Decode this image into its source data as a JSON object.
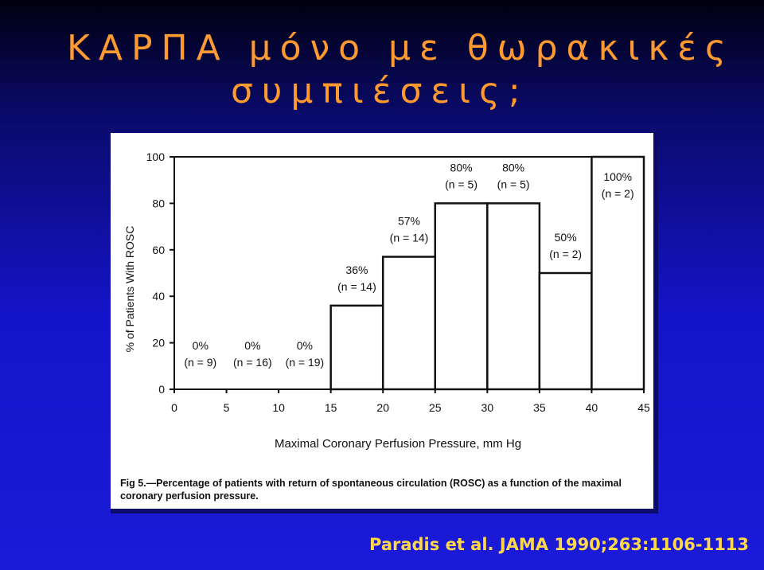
{
  "slide": {
    "title_line1": "ΚΑΡΠΑ μόνο με θωρακικές",
    "title_line2": "συμπιέσεις;",
    "citation": "Paradis et al. JAMA 1990;263:1106-1113",
    "title_color": "#ff9a30",
    "citation_color": "#ffd84a"
  },
  "figure": {
    "caption_label": "Fig 5.",
    "caption_text": "—Percentage of patients with return of spontaneous circulation (ROSC) as a function of the maximal coronary perfusion pressure."
  },
  "chart_data": {
    "type": "bar",
    "xlabel": "Maximal Coronary Perfusion Pressure, mm Hg",
    "ylabel": "% of Patients With ROSC",
    "xlim": [
      0,
      45
    ],
    "ylim": [
      0,
      100
    ],
    "x_ticks": [
      "0",
      "5",
      "10",
      "15",
      "20",
      "25",
      "30",
      "35",
      "40",
      "45"
    ],
    "y_ticks": [
      "0",
      "20",
      "40",
      "60",
      "80",
      "100"
    ],
    "bins": [
      {
        "x_start": 0,
        "x_end": 5,
        "value": 0,
        "pct_label": "0%",
        "n_label": "(n = 9)"
      },
      {
        "x_start": 5,
        "x_end": 10,
        "value": 0,
        "pct_label": "0%",
        "n_label": "(n = 16)"
      },
      {
        "x_start": 10,
        "x_end": 15,
        "value": 0,
        "pct_label": "0%",
        "n_label": "(n = 19)"
      },
      {
        "x_start": 15,
        "x_end": 20,
        "value": 36,
        "pct_label": "36%",
        "n_label": "(n = 14)"
      },
      {
        "x_start": 20,
        "x_end": 25,
        "value": 57,
        "pct_label": "57%",
        "n_label": "(n = 14)"
      },
      {
        "x_start": 25,
        "x_end": 30,
        "value": 80,
        "pct_label": "80%",
        "n_label": "(n = 5)"
      },
      {
        "x_start": 30,
        "x_end": 35,
        "value": 80,
        "pct_label": "80%",
        "n_label": "(n = 5)"
      },
      {
        "x_start": 35,
        "x_end": 40,
        "value": 50,
        "pct_label": "50%",
        "n_label": "(n = 2)"
      },
      {
        "x_start": 40,
        "x_end": 45,
        "value": 100,
        "pct_label": "100%",
        "n_label": "(n = 2)"
      }
    ]
  }
}
